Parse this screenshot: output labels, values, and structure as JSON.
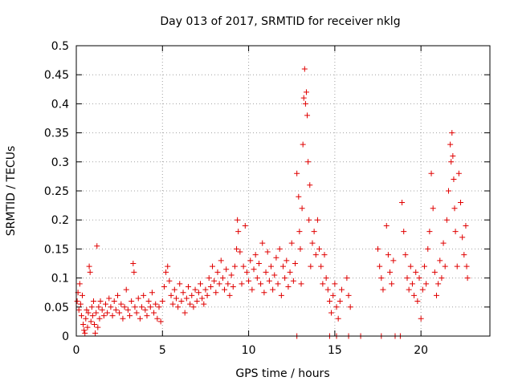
{
  "chart_data": {
    "type": "scatter",
    "title": "Day 013 of 2017, SRMTID for receiver nklg",
    "xlabel": "GPS time / hours",
    "ylabel": "SRMTID / TECUs",
    "xlim": [
      0,
      24
    ],
    "ylim": [
      0,
      0.5
    ],
    "x_ticks": [
      0,
      5,
      10,
      15,
      20
    ],
    "x_tick_labels": [
      "0",
      "5",
      "10",
      "15",
      "20"
    ],
    "y_ticks": [
      0,
      0.05,
      0.1,
      0.15,
      0.2,
      0.25,
      0.3,
      0.35,
      0.4,
      0.45,
      0.5
    ],
    "y_tick_labels": [
      "0",
      "0.05",
      "0.1",
      "0.15",
      "0.2",
      "0.25",
      "0.3",
      "0.35",
      "0.4",
      "0.45",
      "0.5"
    ],
    "grid": true,
    "marker": "+",
    "marker_color": "#e00000",
    "series": [
      {
        "name": "SRMTID",
        "points": [
          [
            0.05,
            0.06
          ],
          [
            0.1,
            0.075
          ],
          [
            0.15,
            0.045
          ],
          [
            0.2,
            0.09
          ],
          [
            0.25,
            0.055
          ],
          [
            0.3,
            0.035
          ],
          [
            0.35,
            0.07
          ],
          [
            0.4,
            0.02
          ],
          [
            0.45,
            0.01
          ],
          [
            0.5,
            0.005
          ],
          [
            0.55,
            0.03
          ],
          [
            0.6,
            0.045
          ],
          [
            0.65,
            0.015
          ],
          [
            0.7,
            0.04
          ],
          [
            0.75,
            0.12
          ],
          [
            0.8,
            0.11
          ],
          [
            0.85,
            0.025
          ],
          [
            0.9,
            0.05
          ],
          [
            0.95,
            0.035
          ],
          [
            1.0,
            0.06
          ],
          [
            1.05,
            0.02
          ],
          [
            1.1,
            0.005
          ],
          [
            1.15,
            0.04
          ],
          [
            1.2,
            0.155
          ],
          [
            1.25,
            0.015
          ],
          [
            1.3,
            0.05
          ],
          [
            1.35,
            0.03
          ],
          [
            1.4,
            0.06
          ],
          [
            1.5,
            0.045
          ],
          [
            1.6,
            0.035
          ],
          [
            1.7,
            0.055
          ],
          [
            1.8,
            0.04
          ],
          [
            1.9,
            0.065
          ],
          [
            2.0,
            0.05
          ],
          [
            2.1,
            0.035
          ],
          [
            2.2,
            0.06
          ],
          [
            2.3,
            0.045
          ],
          [
            2.4,
            0.07
          ],
          [
            2.5,
            0.04
          ],
          [
            2.6,
            0.055
          ],
          [
            2.7,
            0.03
          ],
          [
            2.8,
            0.05
          ],
          [
            2.9,
            0.08
          ],
          [
            3.0,
            0.045
          ],
          [
            3.1,
            0.035
          ],
          [
            3.2,
            0.06
          ],
          [
            3.3,
            0.125
          ],
          [
            3.35,
            0.11
          ],
          [
            3.4,
            0.05
          ],
          [
            3.5,
            0.04
          ],
          [
            3.6,
            0.065
          ],
          [
            3.7,
            0.03
          ],
          [
            3.8,
            0.05
          ],
          [
            3.9,
            0.07
          ],
          [
            4.0,
            0.045
          ],
          [
            4.1,
            0.035
          ],
          [
            4.2,
            0.06
          ],
          [
            4.3,
            0.05
          ],
          [
            4.4,
            0.075
          ],
          [
            4.5,
            0.04
          ],
          [
            4.6,
            0.055
          ],
          [
            4.7,
            0.03
          ],
          [
            4.8,
            0.05
          ],
          [
            4.9,
            0.025
          ],
          [
            5.0,
            0.06
          ],
          [
            5.1,
            0.085
          ],
          [
            5.2,
            0.11
          ],
          [
            5.3,
            0.12
          ],
          [
            5.4,
            0.095
          ],
          [
            5.5,
            0.07
          ],
          [
            5.6,
            0.055
          ],
          [
            5.7,
            0.08
          ],
          [
            5.8,
            0.065
          ],
          [
            5.9,
            0.05
          ],
          [
            6.0,
            0.09
          ],
          [
            6.1,
            0.06
          ],
          [
            6.2,
            0.075
          ],
          [
            6.3,
            0.04
          ],
          [
            6.4,
            0.065
          ],
          [
            6.5,
            0.085
          ],
          [
            6.6,
            0.055
          ],
          [
            6.7,
            0.07
          ],
          [
            6.8,
            0.05
          ],
          [
            6.9,
            0.08
          ],
          [
            7.0,
            0.06
          ],
          [
            7.1,
            0.075
          ],
          [
            7.2,
            0.09
          ],
          [
            7.3,
            0.065
          ],
          [
            7.4,
            0.055
          ],
          [
            7.5,
            0.08
          ],
          [
            7.6,
            0.07
          ],
          [
            7.7,
            0.1
          ],
          [
            7.8,
            0.085
          ],
          [
            7.9,
            0.12
          ],
          [
            8.0,
            0.095
          ],
          [
            8.1,
            0.075
          ],
          [
            8.2,
            0.11
          ],
          [
            8.3,
            0.09
          ],
          [
            8.4,
            0.13
          ],
          [
            8.5,
            0.1
          ],
          [
            8.6,
            0.08
          ],
          [
            8.7,
            0.115
          ],
          [
            8.8,
            0.09
          ],
          [
            8.9,
            0.07
          ],
          [
            9.0,
            0.105
          ],
          [
            9.1,
            0.085
          ],
          [
            9.2,
            0.12
          ],
          [
            9.3,
            0.15
          ],
          [
            9.35,
            0.2
          ],
          [
            9.4,
            0.18
          ],
          [
            9.5,
            0.145
          ],
          [
            9.6,
            0.09
          ],
          [
            9.7,
            0.12
          ],
          [
            9.8,
            0.19
          ],
          [
            9.9,
            0.11
          ],
          [
            10.0,
            0.095
          ],
          [
            10.1,
            0.13
          ],
          [
            10.2,
            0.08
          ],
          [
            10.3,
            0.115
          ],
          [
            10.4,
            0.14
          ],
          [
            10.5,
            0.1
          ],
          [
            10.6,
            0.125
          ],
          [
            10.7,
            0.09
          ],
          [
            10.8,
            0.16
          ],
          [
            10.9,
            0.075
          ],
          [
            11.0,
            0.11
          ],
          [
            11.1,
            0.145
          ],
          [
            11.2,
            0.095
          ],
          [
            11.3,
            0.12
          ],
          [
            11.4,
            0.08
          ],
          [
            11.5,
            0.105
          ],
          [
            11.6,
            0.135
          ],
          [
            11.7,
            0.09
          ],
          [
            11.8,
            0.15
          ],
          [
            11.9,
            0.07
          ],
          [
            12.0,
            0.12
          ],
          [
            12.1,
            0.1
          ],
          [
            12.2,
            0.13
          ],
          [
            12.3,
            0.085
          ],
          [
            12.4,
            0.11
          ],
          [
            12.5,
            0.16
          ],
          [
            12.6,
            0.095
          ],
          [
            12.7,
            0.125
          ],
          [
            12.8,
            0.28
          ],
          [
            12.9,
            0.24
          ],
          [
            12.95,
            0.18
          ],
          [
            13.0,
            0.15
          ],
          [
            13.05,
            0.09
          ],
          [
            13.1,
            0.22
          ],
          [
            13.15,
            0.33
          ],
          [
            13.2,
            0.41
          ],
          [
            13.25,
            0.46
          ],
          [
            13.3,
            0.4
          ],
          [
            13.35,
            0.42
          ],
          [
            13.4,
            0.38
          ],
          [
            13.45,
            0.3
          ],
          [
            13.5,
            0.2
          ],
          [
            13.55,
            0.26
          ],
          [
            13.6,
            0.12
          ],
          [
            13.7,
            0.16
          ],
          [
            13.8,
            0.18
          ],
          [
            13.9,
            0.14
          ],
          [
            14.0,
            0.2
          ],
          [
            14.1,
            0.15
          ],
          [
            14.2,
            0.12
          ],
          [
            14.3,
            0.09
          ],
          [
            14.4,
            0.14
          ],
          [
            14.5,
            0.1
          ],
          [
            14.6,
            0.08
          ],
          [
            14.7,
            0.06
          ],
          [
            14.8,
            0.04
          ],
          [
            14.9,
            0.07
          ],
          [
            15.0,
            0.09
          ],
          [
            15.1,
            0.05
          ],
          [
            15.2,
            0.03
          ],
          [
            15.3,
            0.06
          ],
          [
            15.4,
            0.08
          ],
          [
            15.7,
            0.1
          ],
          [
            15.8,
            0.07
          ],
          [
            15.9,
            0.05
          ],
          [
            17.5,
            0.15
          ],
          [
            17.6,
            0.12
          ],
          [
            17.7,
            0.1
          ],
          [
            17.8,
            0.08
          ],
          [
            18.0,
            0.19
          ],
          [
            18.1,
            0.14
          ],
          [
            18.2,
            0.11
          ],
          [
            18.3,
            0.09
          ],
          [
            18.4,
            0.13
          ],
          [
            18.9,
            0.23
          ],
          [
            19.0,
            0.18
          ],
          [
            19.1,
            0.14
          ],
          [
            19.2,
            0.1
          ],
          [
            19.3,
            0.08
          ],
          [
            19.4,
            0.12
          ],
          [
            19.5,
            0.09
          ],
          [
            19.6,
            0.07
          ],
          [
            19.7,
            0.11
          ],
          [
            19.8,
            0.06
          ],
          [
            19.9,
            0.1
          ],
          [
            20.0,
            0.03
          ],
          [
            20.1,
            0.08
          ],
          [
            20.2,
            0.12
          ],
          [
            20.3,
            0.09
          ],
          [
            20.4,
            0.15
          ],
          [
            20.5,
            0.18
          ],
          [
            20.6,
            0.28
          ],
          [
            20.7,
            0.22
          ],
          [
            20.8,
            0.11
          ],
          [
            20.9,
            0.07
          ],
          [
            21.0,
            0.09
          ],
          [
            21.1,
            0.13
          ],
          [
            21.2,
            0.1
          ],
          [
            21.3,
            0.16
          ],
          [
            21.4,
            0.12
          ],
          [
            21.5,
            0.2
          ],
          [
            21.6,
            0.25
          ],
          [
            21.7,
            0.33
          ],
          [
            21.75,
            0.3
          ],
          [
            21.8,
            0.35
          ],
          [
            21.85,
            0.31
          ],
          [
            21.9,
            0.27
          ],
          [
            21.95,
            0.22
          ],
          [
            22.0,
            0.18
          ],
          [
            22.1,
            0.12
          ],
          [
            22.2,
            0.28
          ],
          [
            22.3,
            0.23
          ],
          [
            22.4,
            0.17
          ],
          [
            22.5,
            0.14
          ],
          [
            22.6,
            0.19
          ],
          [
            22.65,
            0.12
          ],
          [
            22.7,
            0.1
          ],
          [
            12.8,
            0.0
          ],
          [
            14.7,
            0.0
          ],
          [
            15.1,
            0.0
          ],
          [
            15.8,
            0.0
          ],
          [
            16.5,
            0.0
          ],
          [
            17.7,
            0.0
          ],
          [
            18.5,
            0.0
          ],
          [
            18.8,
            0.0
          ]
        ]
      }
    ]
  }
}
